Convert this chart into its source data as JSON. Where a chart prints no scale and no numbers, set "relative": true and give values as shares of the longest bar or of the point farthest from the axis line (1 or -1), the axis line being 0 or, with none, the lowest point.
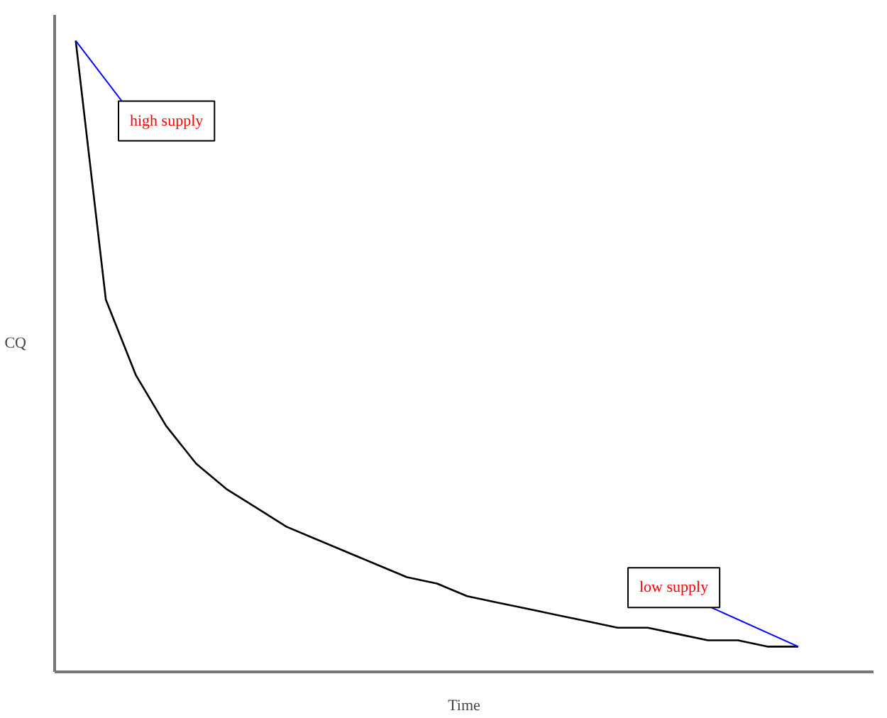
{
  "chart_data": {
    "type": "line",
    "relative": true,
    "xlabel": "Time",
    "ylabel": "CQ",
    "color": "#000000",
    "categories": [
      null,
      null,
      null,
      null,
      null,
      null,
      null,
      null,
      null,
      null,
      null,
      null,
      null,
      null,
      null,
      null,
      null,
      null,
      null,
      null,
      null,
      null,
      null,
      null,
      null
    ],
    "values": [
      1.0,
      0.59,
      0.47,
      0.39,
      0.33,
      0.29,
      0.26,
      0.23,
      0.21,
      0.19,
      0.17,
      0.15,
      0.14,
      0.12,
      0.11,
      0.1,
      0.09,
      0.08,
      0.07,
      0.07,
      0.06,
      0.05,
      0.05,
      0.04,
      0.04
    ],
    "annotations": [
      "high supply",
      "low supply"
    ]
  }
}
